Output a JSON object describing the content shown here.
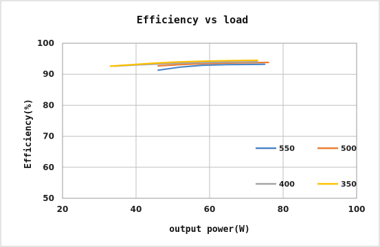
{
  "chart_data": {
    "type": "line",
    "title": "Efficiency vs load",
    "xlabel": "output power(W)",
    "ylabel": "Efficiency(%)",
    "xlim": [
      20,
      100
    ],
    "ylim": [
      50,
      100
    ],
    "x_ticks": [
      "20",
      "40",
      "60",
      "80",
      "100"
    ],
    "y_ticks": [
      "50",
      "60",
      "70",
      "80",
      "90",
      "100"
    ],
    "grid": true,
    "legend_position": "bottom-right inside",
    "series": [
      {
        "name": "550",
        "color": "#4a86c8",
        "x": [
          46,
          52,
          58,
          65,
          75
        ],
        "y": [
          91.3,
          92.3,
          92.9,
          93.1,
          93.2
        ]
      },
      {
        "name": "500",
        "color": "#ed7d31",
        "x": [
          46,
          52,
          58,
          65,
          76
        ],
        "y": [
          92.7,
          93.1,
          93.4,
          93.6,
          93.8
        ]
      },
      {
        "name": "400",
        "color": "#a5a5a5",
        "x": [
          34,
          40,
          48,
          56,
          64,
          73
        ],
        "y": [
          92.6,
          93.0,
          93.4,
          93.7,
          93.9,
          94.0
        ]
      },
      {
        "name": "350",
        "color": "#ffc000",
        "x": [
          33,
          38,
          44,
          50,
          58,
          66,
          73
        ],
        "y": [
          92.6,
          93.0,
          93.5,
          93.9,
          94.2,
          94.4,
          94.5
        ]
      }
    ]
  }
}
